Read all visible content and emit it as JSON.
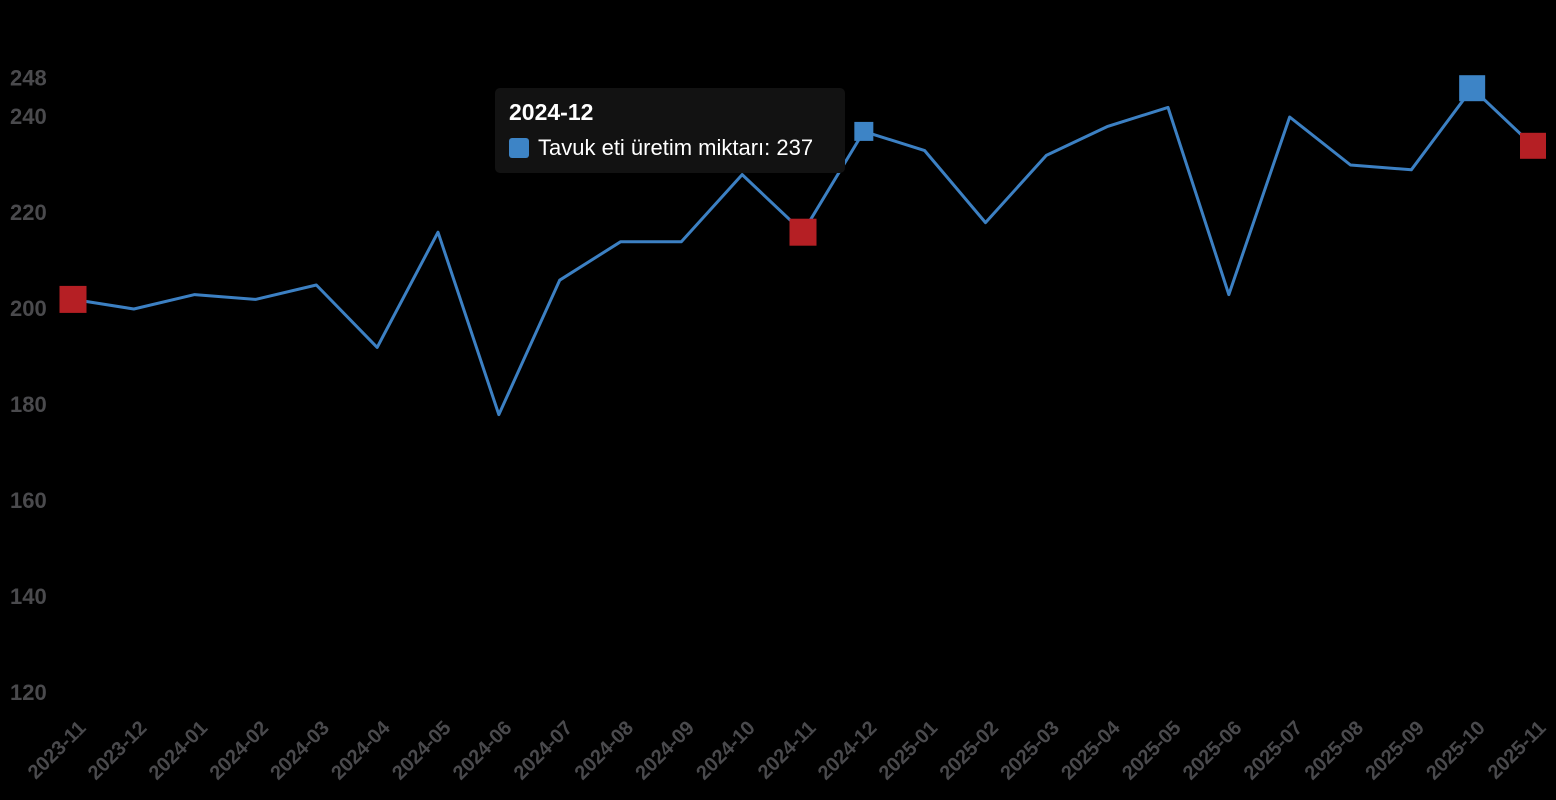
{
  "chart_data": {
    "type": "line",
    "title": "",
    "series_name": "Tavuk eti üretim miktarı",
    "x": [
      "2023-11",
      "2023-12",
      "2024-01",
      "2024-02",
      "2024-03",
      "2024-04",
      "2024-05",
      "2024-06",
      "2024-07",
      "2024-08",
      "2024-09",
      "2024-10",
      "2024-11",
      "2024-12",
      "2025-01",
      "2025-02",
      "2025-03",
      "2025-04",
      "2025-05",
      "2025-06",
      "2025-07",
      "2025-08",
      "2025-09",
      "2025-10",
      "2025-11"
    ],
    "values": [
      202,
      200,
      203,
      202,
      205,
      192,
      216,
      178,
      206,
      214,
      214,
      228,
      216,
      237,
      233,
      218,
      232,
      238,
      242,
      203,
      240,
      230,
      229,
      246,
      234
    ],
    "y_ticks": [
      120,
      140,
      160,
      180,
      200,
      220,
      240,
      248
    ],
    "ylim": [
      120,
      248
    ],
    "xlabel": "",
    "ylabel": "",
    "grid": false,
    "legend_position": "none",
    "x_label_rotation_deg": 45,
    "background_color": "#000000",
    "axis_label_color": "#4a4a4d",
    "line_color": "#3c80c3",
    "blue_marker_color": "#3d84c6",
    "red_marker_color": "#b51f24",
    "markers": [
      {
        "x": "2023-11",
        "index": 0,
        "color": "#b51f24",
        "size": 27
      },
      {
        "x": "2024-11",
        "index": 12,
        "color": "#b51f24",
        "size": 27
      },
      {
        "x": "2024-12",
        "index": 13,
        "color": "#3d84c6",
        "size": 19
      },
      {
        "x": "2025-10",
        "index": 23,
        "color": "#3d84c6",
        "size": 26
      },
      {
        "x": "2025-11",
        "index": 24,
        "color": "#b51f24",
        "size": 26
      }
    ]
  },
  "tooltip": {
    "title": "2024-12",
    "series_label": "Tavuk eti üretim miktarı",
    "value": "237",
    "line": "Tavuk eti üretim miktarı: 237",
    "marker_color": "#3d84c6",
    "background_color": "#121212",
    "text_color": "#ffffff"
  }
}
